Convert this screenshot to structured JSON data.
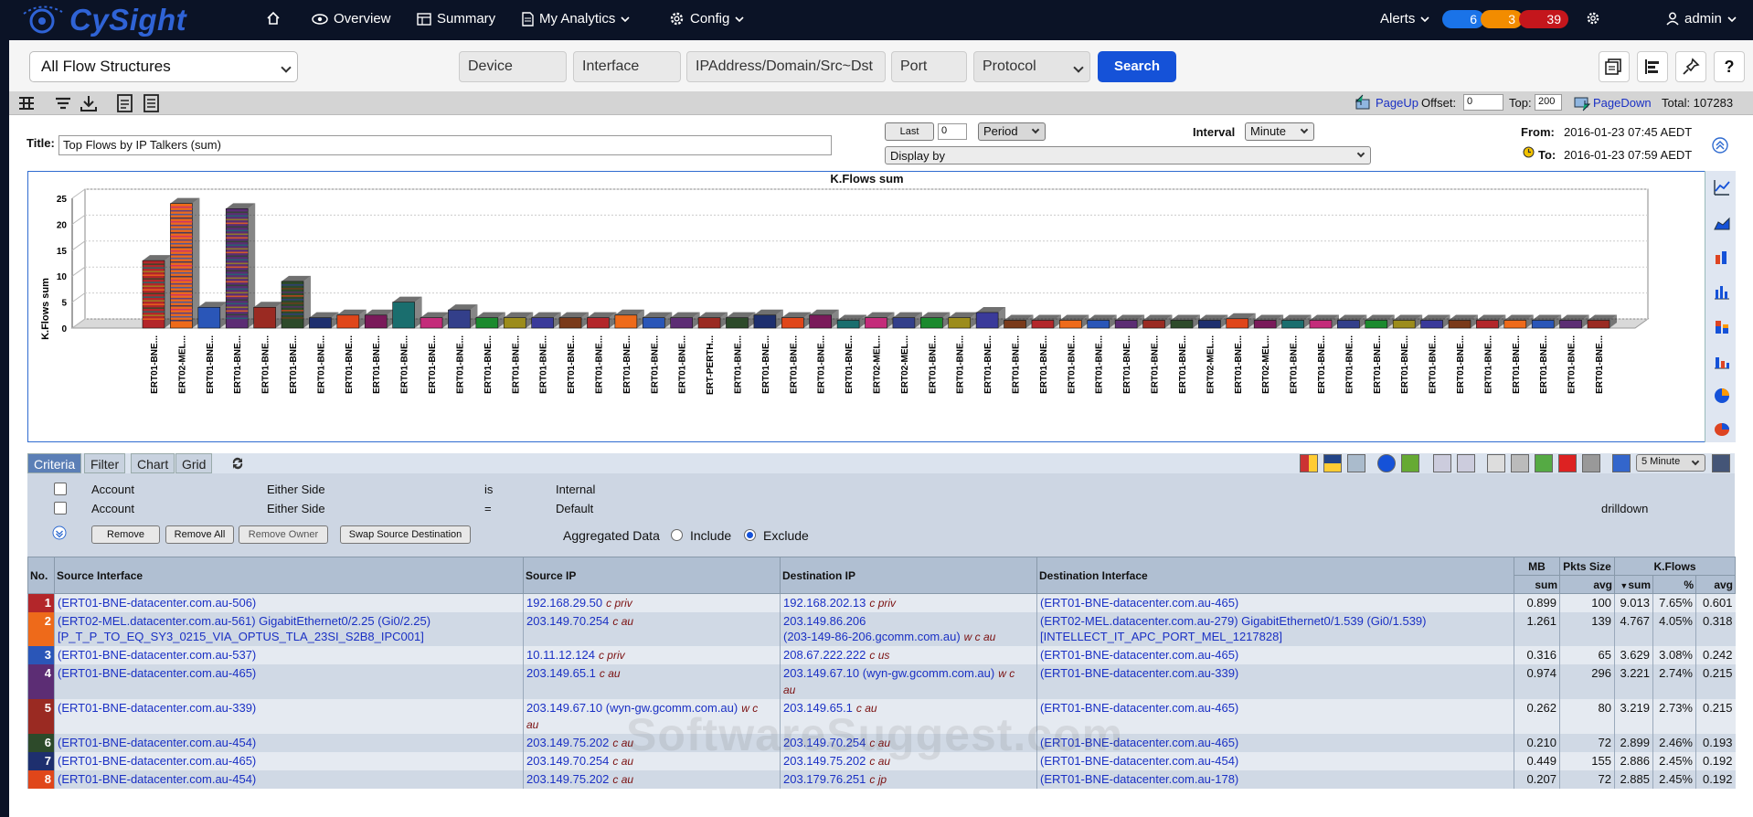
{
  "nav": {
    "logo": "CySight",
    "overview": "Overview",
    "summary": "Summary",
    "analytics": "My Analytics",
    "config": "Config",
    "alerts": "Alerts",
    "alert_counts": [
      "6",
      "3",
      "39"
    ],
    "alert_colors": [
      "#1a73e8",
      "#f28c00",
      "#c4161c"
    ],
    "user": "admin"
  },
  "filters": {
    "flow_structure": "All Flow Structures",
    "device": "Device",
    "interface": "Interface",
    "ip": "IPAddress/Domain/Src~Dst",
    "port": "Port",
    "protocol": "Protocol",
    "search": "Search"
  },
  "pager": {
    "page_up": "PageUp",
    "offset_label": "Offset:",
    "offset": "0",
    "top_label": "Top:",
    "top": "200",
    "page_down": "PageDown",
    "total": "Total: 107283"
  },
  "report": {
    "title_label": "Title:",
    "title": "Top Flows by IP Talkers (sum)",
    "last": "Last",
    "last_value": "0",
    "period": "Period",
    "interval_label": "Interval",
    "interval": "Minute",
    "display_by": "Display by",
    "from_label": "From:",
    "from": "2016-01-23 07:45 AEDT",
    "to_label": "To:",
    "to": "2016-01-23 07:59 AEDT"
  },
  "chart_data": {
    "type": "bar",
    "title": "K.Flows sum",
    "ylabel": "K.Flows sum",
    "ylim": [
      0,
      25
    ],
    "yticks": [
      0,
      5,
      10,
      15,
      20,
      25
    ],
    "categories": [
      "ERT01-BNE...",
      "ERT02-MEL...",
      "ERT01-BNE...",
      "ERT01-BNE...",
      "ERT01-BNE...",
      "ERT01-BNE...",
      "ERT01-BNE...",
      "ERT01-BNE...",
      "ERT01-BNE...",
      "ERT01-BNE...",
      "ERT01-BNE...",
      "ERT01-BNE...",
      "ERT01-BNE...",
      "ERT01-BNE...",
      "ERT01-BNE...",
      "ERT01-BNE...",
      "ERT01-BNE...",
      "ERT01-BNE...",
      "ERT01-BNE...",
      "ERT01-BNE...",
      "ERT-PERTH...",
      "ERT01-BNE...",
      "ERT01-BNE...",
      "ERT01-BNE...",
      "ERT01-BNE...",
      "ERT01-BNE...",
      "ERT02-MEL...",
      "ERT02-MEL...",
      "ERT01-BNE...",
      "ERT01-BNE...",
      "ERT01-BNE...",
      "ERT01-BNE...",
      "ERT01-BNE...",
      "ERT01-BNE...",
      "ERT01-BNE...",
      "ERT01-BNE...",
      "ERT01-BNE...",
      "ERT01-BNE...",
      "ERT02-MEL...",
      "ERT01-BNE...",
      "ERT02-MEL...",
      "ERT01-BNE...",
      "ERT01-BNE...",
      "ERT01-BNE...",
      "ERT01-BNE...",
      "ERT01-BNE...",
      "ERT01-BNE...",
      "ERT01-BNE...",
      "ERT01-BNE...",
      "ERT01-BNE...",
      "ERT01-BNE...",
      "ERT01-BNE...",
      "ERT01-BNE..."
    ],
    "values": [
      13,
      24,
      4,
      23,
      4,
      9,
      2,
      2.5,
      2.5,
      5,
      2,
      3.5,
      2,
      2,
      2,
      2,
      2,
      2.5,
      2,
      2,
      2,
      2,
      2.5,
      2,
      2.5,
      1.5,
      2,
      2,
      2,
      2,
      3,
      1.5,
      1.5,
      1.5,
      1.5,
      1.5,
      1.5,
      1.5,
      1.5,
      1.8,
      1.5,
      1.5,
      1.5,
      1.5,
      1.5,
      1.5,
      1.5,
      1.5,
      1.5,
      1.5,
      1.5,
      1.5,
      1.5
    ]
  },
  "tabs": [
    "Criteria",
    "Filter",
    "Chart",
    "Grid"
  ],
  "criteria": {
    "rows": [
      {
        "field": "Account",
        "side": "Either Side",
        "op": "is",
        "value": "Internal"
      },
      {
        "field": "Account",
        "side": "Either Side",
        "op": "=",
        "value": "Default"
      }
    ],
    "drilldown": "drilldown",
    "remove": "Remove",
    "remove_all": "Remove All",
    "remove_owner": "Remove Owner",
    "swap": "Swap Source Destination",
    "aggregated": "Aggregated Data",
    "include": "Include",
    "exclude": "Exclude",
    "interval": "5 Minute"
  },
  "grid": {
    "headers": {
      "no": "No.",
      "src_if": "Source Interface",
      "src_ip": "Source IP",
      "dst_ip": "Destination IP",
      "dst_if": "Destination Interface",
      "mb": "MB",
      "pkts": "Pkts Size",
      "kflows": "K.Flows"
    },
    "subheaders": {
      "mb": "sum",
      "pkts": "avg",
      "kflows_sum": "sum",
      "kflows_pct": "%",
      "kflows_avg": "avg"
    },
    "rows": [
      {
        "no": "1",
        "color": "#b3262a",
        "src_if": [
          "(ERT01-BNE-datacenter.com.au-506)"
        ],
        "src_ip": "192.168.29.50",
        "src_tag": "c priv",
        "dst_ip": "192.168.202.13",
        "dst_tag": "c priv",
        "dst_if": [
          "(ERT01-BNE-datacenter.com.au-465)"
        ],
        "mb": "0.899",
        "pkts": "100",
        "sum": "9.013",
        "pct": "7.65%",
        "avg": "0.601"
      },
      {
        "no": "2",
        "color": "#ee6a1a",
        "src_if": [
          "(ERT02-MEL.datacenter.com.au-561) GigabitEthernet0/2.25 (Gi0/2.25)",
          "[P_T_P_TO_EQ_SY3_0215_VIA_OPTUS_TLA_23SI_S2B8_IPC001]"
        ],
        "src_ip": "203.149.70.254",
        "src_tag": "c au",
        "dst_ip": "203.149.86.206",
        "dst_ip2": "(203-149-86-206.gcomm.com.au)",
        "dst_tag": "w c au",
        "dst_if": [
          "(ERT02-MEL.datacenter.com.au-279) GigabitEthernet0/1.539 (Gi0/1.539)",
          "[INTELLECT_IT_APC_PORT_MEL_1217828]"
        ],
        "mb": "1.261",
        "pkts": "139",
        "sum": "4.767",
        "pct": "4.05%",
        "avg": "0.318"
      },
      {
        "no": "3",
        "color": "#2a56b8",
        "src_if": [
          "(ERT01-BNE-datacenter.com.au-537)"
        ],
        "src_ip": "10.11.12.124",
        "src_tag": "c priv",
        "dst_ip": "208.67.222.222",
        "dst_tag": "c us",
        "dst_if": [
          "(ERT01-BNE-datacenter.com.au-465)"
        ],
        "mb": "0.316",
        "pkts": "65",
        "sum": "3.629",
        "pct": "3.08%",
        "avg": "0.242"
      },
      {
        "no": "4",
        "color": "#5c2d74",
        "src_if": [
          "(ERT01-BNE-datacenter.com.au-465)"
        ],
        "src_ip": "203.149.65.1",
        "src_tag": "c au",
        "dst_ip": "203.149.67.10 (wyn-gw.gcomm.com.au)",
        "dst_tag": "w c",
        "dst_tag2": "au",
        "dst_if": [
          "(ERT01-BNE-datacenter.com.au-339)"
        ],
        "mb": "0.974",
        "pkts": "296",
        "sum": "3.221",
        "pct": "2.74%",
        "avg": "0.215"
      },
      {
        "no": "5",
        "color": "#9a2a22",
        "src_if": [
          "(ERT01-BNE-datacenter.com.au-339)"
        ],
        "src_ip": "203.149.67.10 (wyn-gw.gcomm.com.au)",
        "src_tag": "w c",
        "src_tag2": "au",
        "dst_ip": "203.149.65.1",
        "dst_tag": "c au",
        "dst_if": [
          "(ERT01-BNE-datacenter.com.au-465)"
        ],
        "mb": "0.262",
        "pkts": "80",
        "sum": "3.219",
        "pct": "2.73%",
        "avg": "0.215"
      },
      {
        "no": "6",
        "color": "#2d4a2a",
        "src_if": [
          "(ERT01-BNE-datacenter.com.au-454)"
        ],
        "src_ip": "203.149.75.202",
        "src_tag": "c au",
        "dst_ip": "203.149.70.254",
        "dst_tag": "c au",
        "dst_if": [
          "(ERT01-BNE-datacenter.com.au-465)"
        ],
        "mb": "0.210",
        "pkts": "72",
        "sum": "2.899",
        "pct": "2.46%",
        "avg": "0.193"
      },
      {
        "no": "7",
        "color": "#1e2f6e",
        "src_if": [
          "(ERT01-BNE-datacenter.com.au-465)"
        ],
        "src_ip": "203.149.70.254",
        "src_tag": "c au",
        "dst_ip": "203.149.75.202",
        "dst_tag": "c au",
        "dst_if": [
          "(ERT01-BNE-datacenter.com.au-454)"
        ],
        "mb": "0.449",
        "pkts": "155",
        "sum": "2.886",
        "pct": "2.45%",
        "avg": "0.192"
      },
      {
        "no": "8",
        "color": "#e0461a",
        "src_if": [
          "(ERT01-BNE-datacenter.com.au-454)"
        ],
        "src_ip": "203.149.75.202",
        "src_tag": "c au",
        "dst_ip": "203.179.76.251",
        "dst_tag": "c jp",
        "dst_if": [
          "(ERT01-BNE-datacenter.com.au-178)"
        ],
        "mb": "0.207",
        "pkts": "72",
        "sum": "2.885",
        "pct": "2.45%",
        "avg": "0.192"
      }
    ]
  },
  "watermark": "SoftwareSuggest.com"
}
